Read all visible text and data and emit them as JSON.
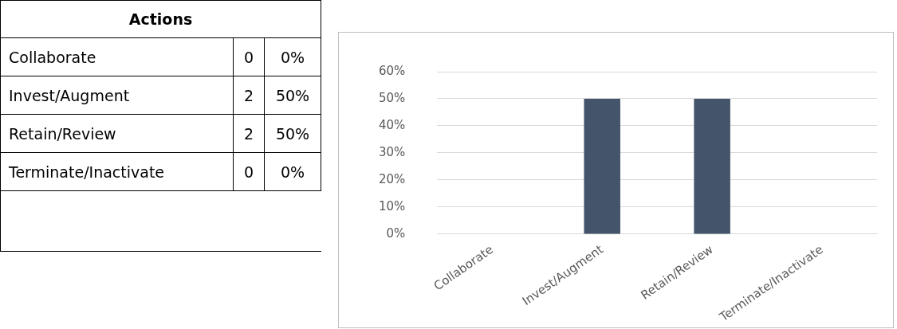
{
  "chart_data": {
    "type": "bar",
    "title": "Actions",
    "categories": [
      "Collaborate",
      "Invest/Augment",
      "Retain/Review",
      "Terminate/Inactivate"
    ],
    "values": [
      0,
      50,
      50,
      0
    ],
    "annotations": [
      "0",
      "0%",
      "2",
      "50%",
      "2",
      "50%",
      "0",
      "0%"
    ],
    "color": "#44546a",
    "ylim": [
      0,
      60
    ],
    "yticks": [
      {
        "value": 0,
        "label": "0%"
      },
      {
        "value": 10,
        "label": "10%"
      },
      {
        "value": 20,
        "label": "20%"
      },
      {
        "value": 30,
        "label": "30%"
      },
      {
        "value": 40,
        "label": "40%"
      },
      {
        "value": 50,
        "label": "50%"
      },
      {
        "value": 60,
        "label": "60%"
      }
    ],
    "grid": "y",
    "legend": false
  }
}
